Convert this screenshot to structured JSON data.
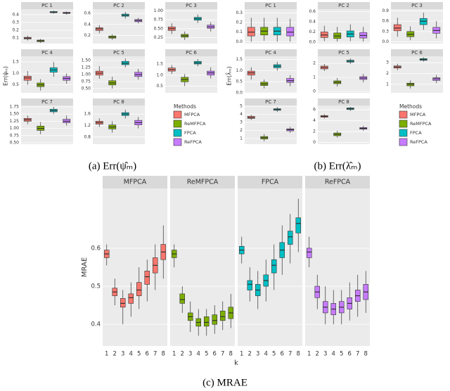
{
  "chart_data": [
    {
      "type": "boxplot",
      "caption": "(a) Err(ψ̂ₘ)",
      "ylabel": "Err(ψ̂ₘ)",
      "legend_title": "Methods",
      "methods": [
        {
          "name": "MFPCA",
          "color": "#F8766D"
        },
        {
          "name": "ReMFPCA",
          "color": "#7CAE00"
        },
        {
          "name": "FPCA",
          "color": "#00BFC4"
        },
        {
          "name": "ReFPCA",
          "color": "#C77CFF"
        }
      ],
      "facets": [
        {
          "title": "PC 1",
          "ylim": [
            0.03,
            0.47
          ],
          "yticks": [
            0.1,
            0.2,
            0.3,
            0.4
          ],
          "boxes": [
            [
              0.07,
              0.09,
              0.1,
              0.11,
              0.13
            ],
            [
              0.04,
              0.055,
              0.065,
              0.075,
              0.09
            ],
            [
              0.41,
              0.425,
              0.43,
              0.44,
              0.45
            ],
            [
              0.4,
              0.415,
              0.42,
              0.43,
              0.44
            ]
          ]
        },
        {
          "title": "PC 2",
          "ylim": [
            0.05,
            0.68
          ],
          "yticks": [
            0.2,
            0.4,
            0.6
          ],
          "boxes": [
            [
              0.24,
              0.29,
              0.32,
              0.34,
              0.39
            ],
            [
              0.12,
              0.15,
              0.17,
              0.19,
              0.22
            ],
            [
              0.51,
              0.55,
              0.57,
              0.59,
              0.63
            ],
            [
              0.42,
              0.45,
              0.47,
              0.49,
              0.52
            ]
          ]
        },
        {
          "title": "PC 3",
          "ylim": [
            0.08,
            1.05
          ],
          "yticks": [
            0.25,
            {
              "value": 0.5,
              "label": "0.50"
            },
            0.75,
            {
              "value": 1,
              "label": "1.00"
            }
          ],
          "boxes": [
            [
              0.35,
              0.45,
              0.5,
              0.55,
              0.65
            ],
            [
              0.18,
              0.26,
              0.3,
              0.34,
              0.42
            ],
            [
              0.66,
              0.74,
              0.78,
              0.82,
              0.9
            ],
            [
              0.42,
              0.51,
              0.55,
              0.6,
              0.68
            ]
          ]
        },
        {
          "title": "PC 4",
          "ylim": [
            0.15,
            1.75
          ],
          "yticks": [
            0.5,
            {
              "value": 1,
              "label": "1.0"
            },
            1.5
          ],
          "boxes": [
            [
              0.5,
              0.7,
              0.8,
              0.88,
              1.1
            ],
            [
              0.25,
              0.42,
              0.5,
              0.58,
              0.75
            ],
            [
              0.85,
              1.05,
              1.15,
              1.25,
              1.5
            ],
            [
              0.55,
              0.7,
              0.78,
              0.86,
              1.0
            ]
          ]
        },
        {
          "title": "PC 5",
          "ylim": [
            0.35,
            1.65
          ],
          "yticks": [
            {
              "value": 0.5,
              "label": "0.50"
            },
            0.75,
            {
              "value": 1,
              "label": "1.00"
            },
            1.25,
            {
              "value": 1.5,
              "label": "1.50"
            }
          ],
          "boxes": [
            [
              0.85,
              0.98,
              1.05,
              1.12,
              1.3
            ],
            [
              0.5,
              0.63,
              0.7,
              0.78,
              0.92
            ],
            [
              1.25,
              1.35,
              1.4,
              1.47,
              1.57
            ],
            [
              0.82,
              0.93,
              1.0,
              1.08,
              1.2
            ]
          ]
        },
        {
          "title": "PC 6",
          "ylim": [
            0.2,
            1.85
          ],
          "yticks": [
            0.5,
            {
              "value": 1,
              "label": "1.0"
            },
            1.5
          ],
          "boxes": [
            [
              1.05,
              1.18,
              1.25,
              1.32,
              1.45
            ],
            [
              0.5,
              0.7,
              0.8,
              0.9,
              1.05
            ],
            [
              1.4,
              1.5,
              1.55,
              1.62,
              1.72
            ],
            [
              0.85,
              1.0,
              1.1,
              1.18,
              1.35
            ]
          ]
        },
        {
          "title": "PC 7",
          "ylim": [
            0.45,
            1.8
          ],
          "yticks": [
            {
              "value": 0.5,
              "label": "0.50"
            },
            0.75,
            {
              "value": 1,
              "label": "1.00"
            },
            1.25,
            {
              "value": 1.5,
              "label": "1.50"
            },
            1.75
          ],
          "boxes": [
            [
              1.15,
              1.25,
              1.3,
              1.35,
              1.45
            ],
            [
              0.8,
              0.93,
              1.0,
              1.08,
              1.22
            ],
            [
              1.5,
              1.58,
              1.62,
              1.67,
              1.75
            ],
            [
              1.1,
              1.2,
              1.25,
              1.32,
              1.45
            ]
          ]
        },
        {
          "title": "PC 8",
          "ylim": [
            0.55,
            1.9
          ],
          "yticks": [
            0.8,
            1.2,
            1.6
          ],
          "boxes": [
            [
              1.15,
              1.25,
              1.3,
              1.35,
              1.45
            ],
            [
              0.95,
              1.08,
              1.15,
              1.22,
              1.35
            ],
            [
              1.45,
              1.55,
              1.6,
              1.65,
              1.75
            ],
            [
              1.1,
              1.22,
              1.3,
              1.38,
              1.5
            ]
          ]
        }
      ]
    },
    {
      "type": "boxplot",
      "caption": "(b) Err(λ̂ₘ)",
      "ylabel": "Err(λ̂ₘ)",
      "legend_title": "Methods",
      "methods": [
        {
          "name": "MFPCA",
          "color": "#F8766D"
        },
        {
          "name": "ReMFPCA",
          "color": "#7CAE00"
        },
        {
          "name": "FPCA",
          "color": "#00BFC4"
        },
        {
          "name": "ReFPCA",
          "color": "#C77CFF"
        }
      ],
      "facets": [
        {
          "title": "PC 1",
          "ylim": [
            -0.02,
            0.34
          ],
          "yticks": [
            {
              "value": 0,
              "label": "0.0"
            },
            0.1,
            0.2,
            0.3
          ],
          "boxes": [
            [
              0,
              0.06,
              0.1,
              0.15,
              0.25
            ],
            [
              0.01,
              0.07,
              0.11,
              0.15,
              0.25
            ],
            [
              0,
              0.07,
              0.11,
              0.15,
              0.25
            ],
            [
              0,
              0.06,
              0.1,
              0.15,
              0.24
            ]
          ]
        },
        {
          "title": "PC 2",
          "ylim": [
            -0.03,
            0.65
          ],
          "yticks": [
            {
              "value": 0,
              "label": "0.0"
            },
            0.2,
            0.4,
            0.6
          ],
          "boxes": [
            [
              0.02,
              0.09,
              0.14,
              0.2,
              0.32
            ],
            [
              0.01,
              0.07,
              0.12,
              0.18,
              0.3
            ],
            [
              0.02,
              0.1,
              0.16,
              0.22,
              0.35
            ],
            [
              0.01,
              0.08,
              0.13,
              0.19,
              0.3
            ]
          ]
        },
        {
          "title": "PC 3",
          "ylim": [
            -0.05,
            0.95
          ],
          "yticks": [
            {
              "value": 0,
              "label": "0.0"
            },
            0.3,
            0.6,
            0.9
          ],
          "boxes": [
            [
              0.15,
              0.32,
              0.4,
              0.5,
              0.7
            ],
            [
              0.05,
              0.15,
              0.22,
              0.3,
              0.45
            ],
            [
              0.35,
              0.5,
              0.6,
              0.68,
              0.85
            ],
            [
              0.1,
              0.25,
              0.33,
              0.42,
              0.6
            ]
          ]
        },
        {
          "title": "PC 4",
          "ylim": [
            0,
            1.65
          ],
          "yticks": [
            {
              "value": 0,
              "label": "0.0"
            },
            0.5,
            {
              "value": 1,
              "label": "1.0"
            },
            1.5
          ],
          "boxes": [
            [
              0.6,
              0.8,
              0.9,
              0.98,
              1.15
            ],
            [
              0.2,
              0.33,
              0.4,
              0.48,
              0.6
            ],
            [
              1.0,
              1.13,
              1.2,
              1.27,
              1.4
            ],
            [
              0.3,
              0.47,
              0.55,
              0.65,
              0.8
            ]
          ]
        },
        {
          "title": "PC 5",
          "ylim": [
            -0.1,
            2.5
          ],
          "yticks": [
            0,
            1,
            2
          ],
          "boxes": [
            [
              1.45,
              1.6,
              1.7,
              1.8,
              1.95
            ],
            [
              0.35,
              0.55,
              0.65,
              0.75,
              0.95
            ],
            [
              1.95,
              2.08,
              2.15,
              2.22,
              2.35
            ],
            [
              0.65,
              0.85,
              0.95,
              1.05,
              1.25
            ]
          ]
        },
        {
          "title": "PC 6",
          "ylim": [
            0.2,
            3.6
          ],
          "yticks": [
            1,
            2,
            3
          ],
          "boxes": [
            [
              2.3,
              2.5,
              2.6,
              2.7,
              2.9
            ],
            [
              0.6,
              0.85,
              1.0,
              1.1,
              1.35
            ],
            [
              3.1,
              3.22,
              3.3,
              3.38,
              3.5
            ],
            [
              1.1,
              1.35,
              1.5,
              1.6,
              1.85
            ]
          ]
        },
        {
          "title": "PC 7",
          "ylim": [
            0.3,
            5.1
          ],
          "yticks": [
            1,
            2,
            3,
            4,
            5
          ],
          "boxes": [
            [
              3.3,
              3.5,
              3.6,
              3.75,
              3.95
            ],
            [
              0.65,
              0.95,
              1.1,
              1.25,
              1.55
            ],
            [
              4.3,
              4.5,
              4.6,
              4.7,
              4.9
            ],
            [
              1.7,
              1.95,
              2.1,
              2.2,
              2.45
            ]
          ]
        },
        {
          "title": "PC 8",
          "ylim": [
            -0.3,
            6.8
          ],
          "yticks": [
            0,
            2,
            4,
            6
          ],
          "boxes": [
            [
              4.4,
              4.65,
              4.8,
              4.95,
              5.2
            ],
            [
              0.9,
              1.25,
              1.5,
              1.75,
              2.15
            ],
            [
              5.8,
              6.05,
              6.2,
              6.35,
              6.55
            ],
            [
              2.15,
              2.45,
              2.6,
              2.75,
              3.05
            ]
          ]
        }
      ]
    },
    {
      "type": "boxplot",
      "caption": "(c) MRAE",
      "ylabel": "MRAE",
      "xlabel": "k",
      "categories": [
        1,
        2,
        3,
        4,
        5,
        6,
        7,
        8
      ],
      "ylim": [
        0.343,
        0.757
      ],
      "yticks": [
        0.4,
        0.5,
        0.6
      ],
      "facets": [
        {
          "title": "MFPCA",
          "color": "#F8766D",
          "boxes": [
            [
              0.555,
              0.575,
              0.585,
              0.595,
              0.61
            ],
            [
              0.45,
              0.475,
              0.485,
              0.495,
              0.52
            ],
            [
              0.4,
              0.445,
              0.455,
              0.468,
              0.49
            ],
            [
              0.42,
              0.455,
              0.47,
              0.48,
              0.51
            ],
            [
              0.44,
              0.475,
              0.49,
              0.51,
              0.55
            ],
            [
              0.46,
              0.505,
              0.525,
              0.54,
              0.57
            ],
            [
              0.49,
              0.535,
              0.555,
              0.575,
              0.61
            ],
            [
              0.52,
              0.57,
              0.59,
              0.61,
              0.66
            ]
          ]
        },
        {
          "title": "ReMFPCA",
          "color": "#7CAE00",
          "boxes": [
            [
              0.55,
              0.575,
              0.585,
              0.595,
              0.61
            ],
            [
              0.43,
              0.455,
              0.465,
              0.48,
              0.5
            ],
            [
              0.38,
              0.41,
              0.42,
              0.43,
              0.46
            ],
            [
              0.37,
              0.395,
              0.405,
              0.415,
              0.44
            ],
            [
              0.37,
              0.395,
              0.405,
              0.42,
              0.44
            ],
            [
              0.375,
              0.4,
              0.41,
              0.425,
              0.45
            ],
            [
              0.385,
              0.41,
              0.42,
              0.435,
              0.46
            ],
            [
              0.39,
              0.415,
              0.43,
              0.445,
              0.48
            ]
          ]
        },
        {
          "title": "FPCA",
          "color": "#00BFC4",
          "boxes": [
            [
              0.56,
              0.585,
              0.595,
              0.605,
              0.63
            ],
            [
              0.46,
              0.49,
              0.505,
              0.515,
              0.55
            ],
            [
              0.44,
              0.475,
              0.49,
              0.505,
              0.54
            ],
            [
              0.46,
              0.5,
              0.515,
              0.53,
              0.57
            ],
            [
              0.49,
              0.535,
              0.555,
              0.57,
              0.61
            ],
            [
              0.53,
              0.575,
              0.595,
              0.615,
              0.66
            ],
            [
              0.56,
              0.61,
              0.63,
              0.645,
              0.69
            ],
            [
              0.59,
              0.64,
              0.665,
              0.68,
              0.73
            ]
          ]
        },
        {
          "title": "ReFPCA",
          "color": "#C77CFF",
          "boxes": [
            [
              0.55,
              0.575,
              0.59,
              0.6,
              0.63
            ],
            [
              0.44,
              0.47,
              0.485,
              0.5,
              0.53
            ],
            [
              0.4,
              0.43,
              0.445,
              0.46,
              0.5
            ],
            [
              0.4,
              0.425,
              0.44,
              0.455,
              0.49
            ],
            [
              0.4,
              0.43,
              0.445,
              0.46,
              0.49
            ],
            [
              0.41,
              0.44,
              0.455,
              0.47,
              0.51
            ],
            [
              0.42,
              0.46,
              0.475,
              0.49,
              0.53
            ],
            [
              0.43,
              0.465,
              0.485,
              0.505,
              0.54
            ]
          ]
        }
      ]
    }
  ]
}
